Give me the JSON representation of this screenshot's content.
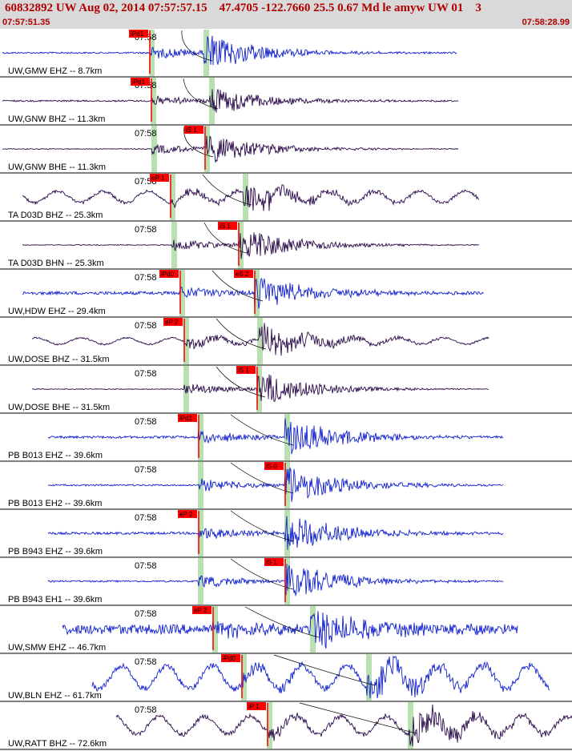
{
  "header": {
    "title": "60832892 UW Aug 02, 2014 07:57:57.15    47.4705 -122.7660 25.5 0.67 Md le amyw UW 01    3",
    "start_time": "07:57:51.35",
    "end_time": "07:58:28.99"
  },
  "time_tick_label": "07:58",
  "colors": {
    "blue": "#1020d0",
    "dark": "#2a0a4a",
    "pick": "#ff0000",
    "window": "#b8e0b0",
    "header": "#b00000"
  },
  "traces": [
    {
      "label": "UW,GMW EHZ -- 8.7km",
      "picks": [
        "iPd1"
      ],
      "color": "blue"
    },
    {
      "label": "UW,GNW BHZ -- 11.3km",
      "picks": [
        "iPd1"
      ],
      "color": "dark"
    },
    {
      "label": "UW,GNW BHE -- 11.3km",
      "picks": [
        "iS 1"
      ],
      "color": "dark"
    },
    {
      "label": "TA D03D BHZ -- 25.3km",
      "picks": [
        "eP 1"
      ],
      "color": "dark"
    },
    {
      "label": "TA D03D BHN -- 25.3km",
      "picks": [
        "iS 1"
      ],
      "color": "dark"
    },
    {
      "label": "UW,HDW EHZ -- 29.4km",
      "picks": [
        "iPd0",
        "eS 2"
      ],
      "color": "blue"
    },
    {
      "label": "UW,DOSE BHZ -- 31.5km",
      "picks": [
        "eP 2"
      ],
      "color": "dark"
    },
    {
      "label": "UW,DOSE BHE -- 31.5km",
      "picks": [
        "iS 1"
      ],
      "color": "dark"
    },
    {
      "label": "PB B013 EHZ -- 39.6km",
      "picks": [
        "iPd1"
      ],
      "color": "blue"
    },
    {
      "label": "PB B013 EH2 -- 39.6km",
      "picks": [
        "iS 0"
      ],
      "color": "blue"
    },
    {
      "label": "PB B943 EHZ -- 39.6km",
      "picks": [
        "eP 2"
      ],
      "color": "blue"
    },
    {
      "label": "PB B943 EH1 -- 39.6km",
      "picks": [
        "iS 1"
      ],
      "color": "blue"
    },
    {
      "label": "UW,SMW EHZ -- 46.7km",
      "picks": [
        "eP 2"
      ],
      "color": "blue"
    },
    {
      "label": "UW,BLN EHZ -- 61.7km",
      "picks": [
        "iPd0"
      ],
      "color": "blue"
    },
    {
      "label": "UW,RATT BHZ -- 72.6km",
      "picks": [
        "iP 1"
      ],
      "color": "dark"
    }
  ]
}
